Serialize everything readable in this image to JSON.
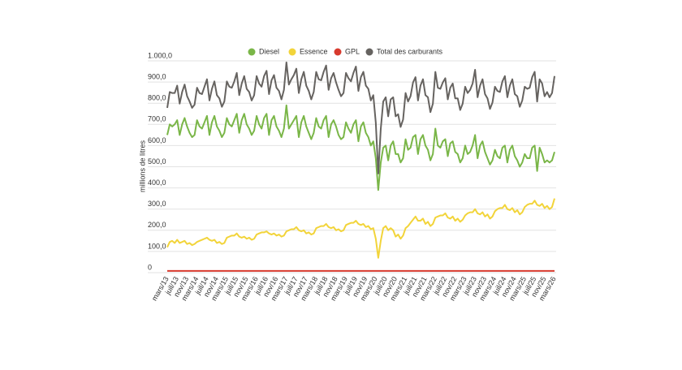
{
  "chart_data": {
    "type": "line",
    "y_label": "millions de litres",
    "categories": [
      "mars/13",
      null,
      null,
      null,
      "juil/13",
      null,
      null,
      null,
      "nov/13",
      null,
      null,
      null,
      "mars/14",
      null,
      null,
      null,
      "juil/14",
      null,
      null,
      null,
      "nov/14",
      null,
      null,
      null,
      "mars/15",
      null,
      null,
      null,
      "juil/15",
      null,
      null,
      null,
      "nov/15",
      null,
      null,
      null,
      "mars/16",
      null,
      null,
      null,
      "juil/16",
      null,
      null,
      null,
      "nov/16",
      null,
      null,
      null,
      "mars/17",
      null,
      null,
      null,
      "juil/17",
      null,
      null,
      null,
      "nov/17",
      null,
      null,
      null,
      "mars/18",
      null,
      null,
      null,
      "juil/18",
      null,
      null,
      null,
      "nov/18",
      null,
      null,
      null,
      "mars/19",
      null,
      null,
      null,
      "juil/19",
      null,
      null,
      null,
      "nov/19",
      null,
      null,
      null,
      "mars/20",
      null,
      null,
      null,
      "juil/20",
      null,
      null,
      null,
      "nov/20",
      null,
      null,
      null,
      "mars/21",
      null,
      null,
      null,
      "juil/21",
      null,
      null,
      null,
      "nov/21",
      null,
      null,
      null,
      "mars/22",
      null,
      null,
      null,
      "juil/22",
      null,
      null,
      null,
      "nov/22",
      null,
      null,
      null,
      "mars/23",
      null,
      null,
      null,
      "juil/23",
      null,
      null,
      null,
      "nov/23",
      null,
      null,
      null,
      "mars/24",
      null,
      null,
      null,
      "juil/24",
      null,
      null,
      null,
      "nov/24",
      null,
      null,
      null,
      "mars/25",
      null,
      null,
      null,
      "juil/25",
      null,
      null,
      null,
      "nov/25",
      null,
      null,
      null,
      "mars/26"
    ],
    "series": [
      {
        "name": "Diesel",
        "color": "#7ab648",
        "values": [
          650,
          700,
          690,
          700,
          720,
          650,
          700,
          730,
          690,
          660,
          640,
          650,
          720,
          690,
          680,
          710,
          740,
          650,
          710,
          740,
          690,
          670,
          640,
          660,
          730,
          700,
          690,
          720,
          750,
          660,
          720,
          750,
          700,
          680,
          650,
          670,
          740,
          700,
          680,
          730,
          750,
          650,
          720,
          740,
          690,
          670,
          640,
          680,
          790,
          680,
          700,
          720,
          740,
          640,
          710,
          740,
          690,
          660,
          630,
          660,
          730,
          690,
          680,
          720,
          740,
          640,
          700,
          720,
          690,
          650,
          630,
          640,
          710,
          680,
          660,
          700,
          720,
          620,
          690,
          710,
          660,
          640,
          600,
          620,
          540,
          390,
          520,
          590,
          600,
          530,
          600,
          620,
          560,
          560,
          520,
          540,
          630,
          580,
          590,
          640,
          650,
          560,
          630,
          650,
          600,
          580,
          530,
          560,
          680,
          600,
          590,
          620,
          630,
          550,
          610,
          620,
          570,
          560,
          520,
          540,
          600,
          560,
          570,
          600,
          650,
          540,
          600,
          620,
          570,
          540,
          510,
          530,
          580,
          550,
          540,
          590,
          600,
          520,
          580,
          600,
          550,
          530,
          500,
          520,
          560,
          540,
          540,
          590,
          600,
          480,
          590,
          560,
          520,
          530,
          520,
          530,
          570
        ]
      },
      {
        "name": "Essence",
        "color": "#f2d43a",
        "values": [
          120,
          145,
          150,
          140,
          155,
          140,
          145,
          150,
          135,
          140,
          130,
          135,
          145,
          150,
          155,
          160,
          165,
          155,
          150,
          155,
          140,
          145,
          135,
          140,
          165,
          170,
          175,
          175,
          185,
          170,
          165,
          170,
          160,
          165,
          155,
          160,
          180,
          185,
          190,
          190,
          195,
          185,
          180,
          185,
          175,
          180,
          170,
          175,
          195,
          200,
          205,
          205,
          215,
          200,
          195,
          200,
          185,
          190,
          180,
          185,
          210,
          215,
          220,
          220,
          230,
          215,
          210,
          215,
          200,
          205,
          195,
          200,
          225,
          230,
          235,
          235,
          245,
          230,
          225,
          230,
          215,
          220,
          205,
          210,
          160,
          70,
          150,
          210,
          220,
          200,
          210,
          200,
          170,
          180,
          160,
          175,
          210,
          220,
          235,
          250,
          265,
          245,
          245,
          255,
          230,
          240,
          220,
          230,
          260,
          265,
          270,
          270,
          280,
          260,
          255,
          265,
          245,
          255,
          240,
          250,
          270,
          280,
          285,
          285,
          300,
          280,
          275,
          285,
          265,
          275,
          255,
          265,
          290,
          300,
          305,
          305,
          320,
          300,
          295,
          305,
          285,
          295,
          275,
          285,
          310,
          320,
          325,
          325,
          340,
          320,
          315,
          325,
          305,
          315,
          300,
          310,
          350
        ]
      },
      {
        "name": "GPL",
        "color": "#d83a2e",
        "values": [
          8,
          8,
          8,
          8,
          8,
          8,
          8,
          8,
          8,
          8,
          8,
          8,
          8,
          8,
          8,
          8,
          8,
          8,
          8,
          8,
          8,
          8,
          8,
          8,
          8,
          8,
          8,
          8,
          8,
          8,
          8,
          8,
          8,
          8,
          8,
          8,
          8,
          8,
          8,
          8,
          8,
          8,
          8,
          8,
          8,
          8,
          8,
          8,
          8,
          8,
          8,
          8,
          8,
          8,
          8,
          8,
          8,
          8,
          8,
          8,
          8,
          8,
          8,
          8,
          8,
          8,
          8,
          8,
          8,
          8,
          8,
          8,
          8,
          8,
          8,
          8,
          8,
          8,
          8,
          8,
          8,
          8,
          8,
          8,
          8,
          8,
          8,
          8,
          8,
          8,
          8,
          8,
          8,
          8,
          8,
          8,
          8,
          8,
          8,
          8,
          8,
          8,
          8,
          8,
          8,
          8,
          8,
          8,
          8,
          8,
          8,
          8,
          8,
          8,
          8,
          8,
          8,
          8,
          8,
          8,
          8,
          8,
          8,
          8,
          8,
          8,
          8,
          8,
          8,
          8,
          8,
          8,
          8,
          8,
          8,
          8,
          8,
          8,
          8,
          8,
          8,
          8,
          8,
          8,
          8,
          8,
          8,
          8,
          8,
          8,
          8,
          8,
          8,
          8,
          8,
          8,
          8
        ]
      },
      {
        "name": "Total des carburants",
        "color": "#666360",
        "values": [
          778,
          853,
          848,
          848,
          883,
          798,
          853,
          888,
          833,
          808,
          778,
          793,
          873,
          848,
          843,
          878,
          913,
          813,
          868,
          903,
          838,
          823,
          783,
          808,
          903,
          878,
          873,
          903,
          943,
          838,
          893,
          928,
          868,
          853,
          813,
          838,
          928,
          893,
          878,
          928,
          953,
          843,
          908,
          933,
          873,
          858,
          818,
          863,
          993,
          888,
          913,
          933,
          963,
          848,
          913,
          948,
          883,
          858,
          818,
          853,
          948,
          913,
          908,
          948,
          978,
          863,
          918,
          943,
          898,
          863,
          833,
          848,
          943,
          918,
          903,
          943,
          973,
          858,
          923,
          948,
          883,
          868,
          813,
          838,
          708,
          468,
          678,
          808,
          828,
          738,
          818,
          828,
          738,
          748,
          688,
          723,
          848,
          808,
          833,
          898,
          923,
          813,
          883,
          913,
          838,
          828,
          758,
          798,
          948,
          873,
          868,
          898,
          918,
          818,
          873,
          893,
          823,
          823,
          768,
          798,
          878,
          848,
          863,
          893,
          958,
          828,
          883,
          913,
          843,
          823,
          773,
          803,
          878,
          858,
          853,
          903,
          928,
          828,
          883,
          913,
          843,
          833,
          783,
          813,
          878,
          868,
          873,
          923,
          948,
          808,
          913,
          893,
          833,
          853,
          828,
          848,
          928
        ]
      }
    ],
    "ylim": [
      0,
      1000
    ],
    "yticks": [
      0,
      {
        "value": 100,
        "label": "100,0"
      },
      {
        "value": 200,
        "label": "200,0"
      },
      {
        "value": 300,
        "label": "300,0"
      },
      {
        "value": 400,
        "label": "400,0"
      },
      {
        "value": 500,
        "label": "500,0"
      },
      {
        "value": 600,
        "label": "600,0"
      },
      {
        "value": 700,
        "label": "700,0"
      },
      {
        "value": 800,
        "label": "800,0"
      },
      {
        "value": 900,
        "label": "900,0"
      },
      {
        "value": 1000,
        "label": "1.000,0"
      }
    ],
    "grid": true,
    "legend": "top"
  }
}
